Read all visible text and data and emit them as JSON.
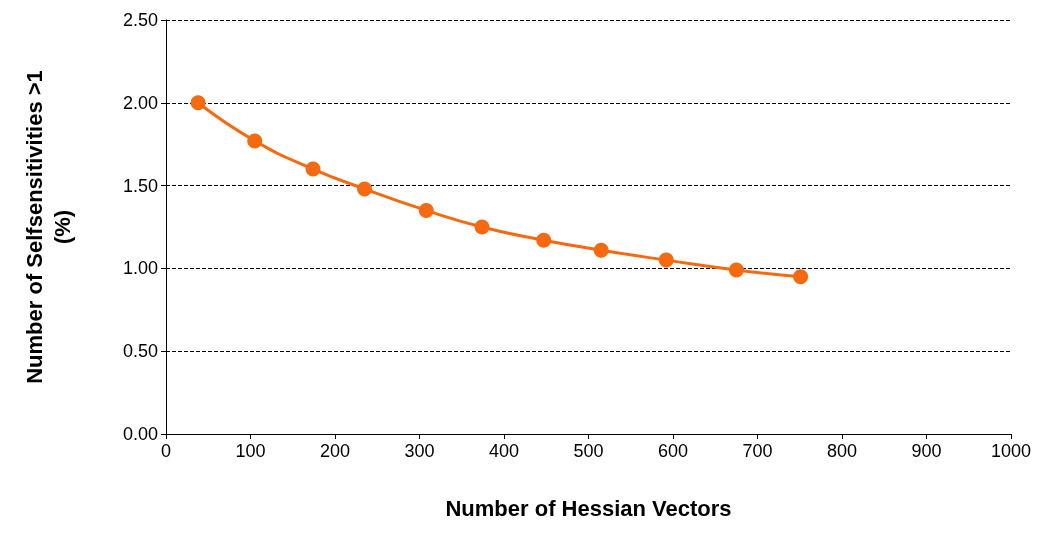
{
  "chart_data": {
    "type": "line",
    "xlabel": "Number of Hessian Vectors",
    "ylabel": "Number of Selfsensitivities >1\n(%)",
    "x": [
      38,
      105,
      174,
      235,
      308,
      374,
      447,
      515,
      592,
      675,
      751
    ],
    "series": [
      {
        "color": "#f56a10",
        "values": [
          2.0,
          1.77,
          1.6,
          1.48,
          1.35,
          1.25,
          1.17,
          1.11,
          1.05,
          0.99,
          0.95
        ]
      }
    ],
    "xlim": [
      0,
      1000
    ],
    "xticks": [
      0,
      100,
      200,
      300,
      400,
      500,
      600,
      700,
      800,
      900,
      1000
    ],
    "ylim": [
      0,
      2.5
    ],
    "yticks": [
      {
        "value": 0,
        "label": "0.00"
      },
      {
        "value": 0.5,
        "label": "0.50"
      },
      {
        "value": 1,
        "label": "1.00"
      },
      {
        "value": 1.5,
        "label": "1.50"
      },
      {
        "value": 2,
        "label": "2.00"
      },
      {
        "value": 2.5,
        "label": "2.50"
      }
    ],
    "grid": "y",
    "marker": "circle",
    "line_style": "solid"
  }
}
